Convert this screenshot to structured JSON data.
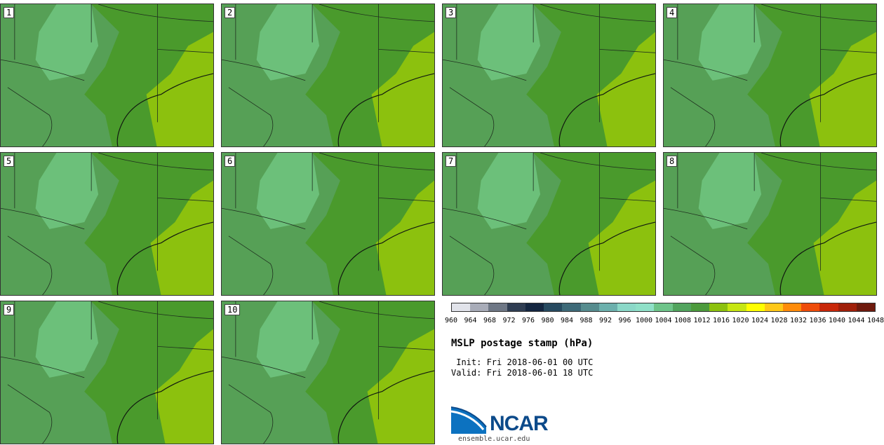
{
  "panels": [
    {
      "label": "1"
    },
    {
      "label": "2"
    },
    {
      "label": "3"
    },
    {
      "label": "4"
    },
    {
      "label": "5"
    },
    {
      "label": "6"
    },
    {
      "label": "7"
    },
    {
      "label": "8"
    },
    {
      "label": "9"
    },
    {
      "label": "10"
    }
  ],
  "colorbar": {
    "colors": [
      "#e1e3ea",
      "#a8acb8",
      "#6e7785",
      "#2f3d52",
      "#142640",
      "#274a60",
      "#3e6a78",
      "#568c8e",
      "#6cb0ad",
      "#8bd8c8",
      "#8fe0c8",
      "#6ec48a",
      "#52a45e",
      "#4c9a3c",
      "#8cc10e",
      "#c6e612",
      "#ffff00",
      "#ffc818",
      "#ff8c0a",
      "#ee4c0a",
      "#c8280a",
      "#a0200a",
      "#6e1a0e"
    ],
    "tick_labels": [
      "960",
      "964",
      "968",
      "972",
      "976",
      "980",
      "984",
      "988",
      "992",
      "996",
      "1000",
      "1004",
      "1008",
      "1012",
      "1016",
      "1020",
      "1024",
      "1028",
      "1032",
      "1036",
      "1040",
      "1044",
      "1048"
    ]
  },
  "title": "MSLP postage stamp (hPa)",
  "init_line": " Init: Fri 2018-06-01 00 UTC",
  "valid_line": "Valid: Fri 2018-06-01 18 UTC",
  "logo_text": "NCAR",
  "website": "ensemble.ucar.edu",
  "map_colors": {
    "dark_green": "#4a9a2c",
    "mid_green": "#56a056",
    "light_green": "#6cc07a",
    "yellow_green": "#8cc10e"
  }
}
